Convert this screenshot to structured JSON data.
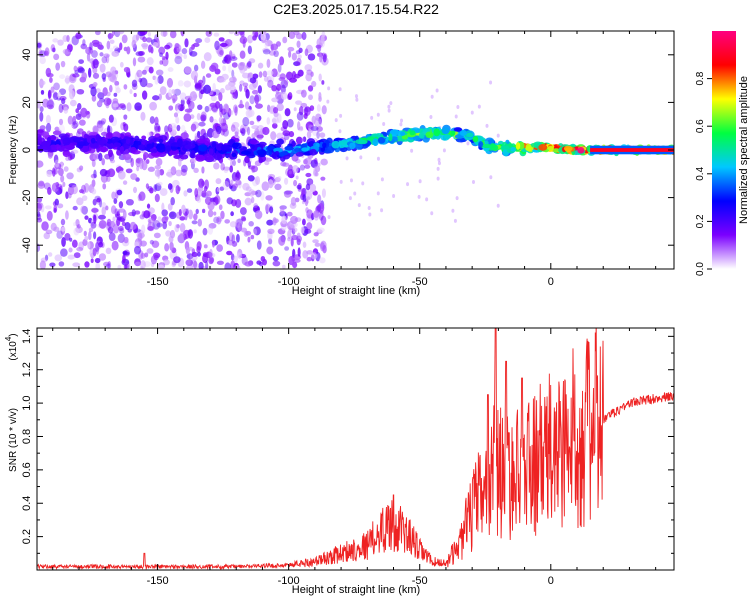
{
  "title": "C2E3.2025.017.15.54.R22",
  "chart_data": [
    {
      "type": "heatmap",
      "xlabel": "Height of straight line (km)",
      "ylabel": "Frequency (Hz)",
      "xlim": [
        -196,
        47
      ],
      "ylim": [
        -50,
        50
      ],
      "xticks": [
        -150,
        -100,
        -50,
        0
      ],
      "yticks": [
        -40,
        -20,
        0,
        20,
        40
      ],
      "colorbar": {
        "label": "Normalized spectral amplitude",
        "range": [
          0,
          1
        ],
        "ticks": [
          0.0,
          0.2,
          0.4,
          0.6,
          0.8
        ],
        "colormap": [
          "#ffffff",
          "#7b00ff",
          "#0000ff",
          "#00c8ff",
          "#00ff40",
          "#ffff00",
          "#ff0000",
          "#ff0080"
        ]
      },
      "ridge": {
        "x": [
          -190,
          -170,
          -150,
          -130,
          -110,
          -100,
          -80,
          -65,
          -55,
          -48,
          -40,
          -30,
          -25,
          -20,
          -15,
          -10,
          0,
          10,
          15,
          45
        ],
        "freq": [
          3,
          3,
          2,
          0,
          0,
          0,
          2,
          5,
          6,
          7,
          7,
          6,
          2,
          1,
          1,
          1,
          1,
          0,
          0,
          0
        ],
        "amplitude": [
          0.25,
          0.25,
          0.28,
          0.3,
          0.35,
          0.4,
          0.5,
          0.6,
          0.65,
          0.7,
          0.7,
          0.6,
          0.6,
          0.65,
          0.7,
          0.85,
          0.95,
          0.95,
          0.95,
          0.95
        ]
      }
    },
    {
      "type": "line",
      "xlabel": "Height of straight line (km)",
      "ylabel": "SNR (10 * v/v)",
      "scale_label": "(x10",
      "scale_exp": "4",
      "xlim": [
        -196,
        47
      ],
      "ylim": [
        0,
        1.45
      ],
      "xticks": [
        -150,
        -100,
        -50,
        0
      ],
      "yticks": [
        0.2,
        0.4,
        0.6,
        0.8,
        1.0,
        1.2,
        1.4
      ],
      "color": "#ee2222",
      "envelope": {
        "x": [
          -196,
          -160,
          -120,
          -100,
          -90,
          -80,
          -70,
          -62,
          -55,
          -50,
          -45,
          -40,
          -35,
          -30,
          -25,
          -22,
          -20,
          -15,
          -10,
          -5,
          0,
          10,
          20,
          30,
          40,
          47
        ],
        "y": [
          0.02,
          0.02,
          0.02,
          0.03,
          0.05,
          0.1,
          0.15,
          0.28,
          0.22,
          0.12,
          0.05,
          0.04,
          0.15,
          0.35,
          0.5,
          0.7,
          0.6,
          0.55,
          0.6,
          0.65,
          0.7,
          0.8,
          0.9,
          1.0,
          1.03,
          1.04
        ]
      },
      "peaks": [
        {
          "x": -155,
          "y": 0.1
        },
        {
          "x": -60,
          "y": 0.45
        },
        {
          "x": -21,
          "y": 1.45
        },
        {
          "x": -17,
          "y": 1.25
        },
        {
          "x": -11,
          "y": 1.15
        },
        {
          "x": -24,
          "y": 1.05
        }
      ]
    }
  ]
}
